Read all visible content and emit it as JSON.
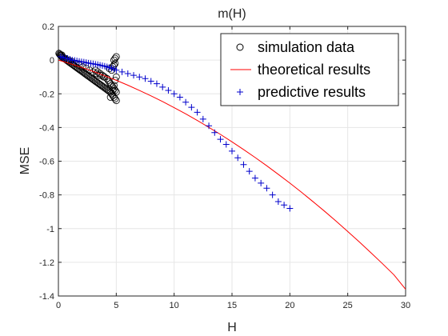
{
  "chart_data": {
    "type": "scatter",
    "title": "m(H)",
    "xlabel": "H",
    "ylabel": "MSE",
    "xlim": [
      0,
      30
    ],
    "ylim": [
      -1.4,
      0.2
    ],
    "xticks": [
      0,
      5,
      10,
      15,
      20,
      25,
      30
    ],
    "yticks": [
      -1.4,
      -1.2,
      -1,
      -0.8,
      -0.6,
      -0.4,
      -0.2,
      0,
      0.2
    ],
    "xtick_labels": [
      "0",
      "5",
      "10",
      "15",
      "20",
      "25",
      "30"
    ],
    "ytick_labels": [
      "-1.4",
      "-1.2",
      "-1",
      "-0.8",
      "-0.6",
      "-0.4",
      "-0.2",
      "0",
      "0.2"
    ],
    "grid": true,
    "legend_position": "top-right",
    "series": [
      {
        "name": "simulation data",
        "kind": "scatter",
        "marker": "circle",
        "color": "#000000",
        "x": [
          0.05,
          0.1,
          0.15,
          0.2,
          0.25,
          0.3,
          0.35,
          0.4,
          0.5,
          0.6,
          0.7,
          0.8,
          0.9,
          1.0,
          1.1,
          1.2,
          1.3,
          1.4,
          1.5,
          1.6,
          1.7,
          1.8,
          1.9,
          2.0,
          2.1,
          2.2,
          2.3,
          2.4,
          2.5,
          2.6,
          2.7,
          2.8,
          2.9,
          3.0,
          3.1,
          3.2,
          3.3,
          3.4,
          3.5,
          3.6,
          3.7,
          3.8,
          3.9,
          4.0,
          4.1,
          4.2,
          4.3,
          4.4,
          4.5,
          4.6,
          4.7,
          4.8,
          4.9,
          5.0,
          3.2,
          3.4,
          3.6,
          3.8,
          4.0,
          4.2,
          4.3,
          4.4,
          4.5,
          4.6,
          4.7,
          4.8,
          4.9,
          5.0,
          4.4,
          4.6,
          4.7,
          4.8,
          4.9,
          4.5,
          4.6,
          4.7,
          4.8,
          4.9,
          5.0,
          4.8,
          4.9,
          5.0,
          0.3,
          0.6,
          0.9,
          1.2,
          1.5,
          1.8,
          2.1,
          2.4,
          2.7,
          3.0,
          3.3,
          3.6,
          3.9,
          4.2
        ],
        "y": [
          0.04,
          0.035,
          0.03,
          0.03,
          0.025,
          0.02,
          0.02,
          0.015,
          0.01,
          0.005,
          0.0,
          -0.005,
          -0.01,
          -0.015,
          -0.02,
          -0.025,
          -0.03,
          -0.035,
          -0.04,
          -0.045,
          -0.05,
          -0.055,
          -0.06,
          -0.065,
          -0.07,
          -0.075,
          -0.08,
          -0.085,
          -0.09,
          -0.095,
          -0.1,
          -0.105,
          -0.11,
          -0.115,
          -0.12,
          -0.125,
          -0.13,
          -0.135,
          -0.14,
          -0.145,
          -0.15,
          -0.155,
          -0.16,
          -0.165,
          -0.17,
          -0.175,
          -0.18,
          -0.185,
          -0.19,
          -0.2,
          -0.21,
          -0.22,
          -0.23,
          -0.24,
          -0.06,
          -0.07,
          -0.08,
          -0.09,
          -0.1,
          -0.11,
          -0.12,
          -0.13,
          -0.14,
          -0.15,
          -0.16,
          -0.17,
          -0.18,
          -0.19,
          -0.05,
          -0.06,
          -0.04,
          -0.03,
          -0.02,
          -0.22,
          -0.2,
          -0.18,
          -0.15,
          -0.12,
          -0.1,
          0.0,
          0.01,
          0.02,
          0.03,
          0.01,
          0.0,
          -0.01,
          -0.02,
          -0.03,
          -0.04,
          -0.05,
          -0.06,
          -0.07,
          -0.08,
          -0.09,
          -0.1,
          -0.11
        ]
      },
      {
        "name": "theoretical results",
        "kind": "line",
        "color": "#ff0000",
        "x": [
          0,
          1,
          2,
          3,
          4,
          5,
          6,
          7,
          8,
          9,
          10,
          11,
          12,
          13,
          14,
          15,
          16,
          17,
          18,
          19,
          20,
          21,
          22,
          23,
          24,
          25,
          26,
          27,
          28,
          29,
          30
        ],
        "y": [
          0.0,
          -0.021,
          -0.043,
          -0.067,
          -0.093,
          -0.12,
          -0.149,
          -0.18,
          -0.212,
          -0.246,
          -0.282,
          -0.319,
          -0.358,
          -0.399,
          -0.441,
          -0.485,
          -0.531,
          -0.578,
          -0.627,
          -0.678,
          -0.73,
          -0.784,
          -0.84,
          -0.897,
          -0.956,
          -1.017,
          -1.079,
          -1.143,
          -1.208,
          -1.275,
          -1.36
        ]
      },
      {
        "name": "predictive results",
        "kind": "scatter",
        "marker": "plus",
        "color": "#0000cc",
        "x": [
          0.2,
          0.4,
          0.6,
          0.8,
          1.0,
          1.2,
          1.4,
          1.6,
          1.8,
          2.0,
          2.2,
          2.4,
          2.6,
          2.8,
          3.0,
          3.2,
          3.4,
          3.6,
          3.8,
          4.0,
          4.2,
          4.4,
          4.6,
          4.8,
          5.0,
          5.5,
          6.0,
          6.5,
          7.0,
          7.5,
          8.0,
          8.5,
          9.0,
          9.5,
          10.0,
          10.5,
          11.0,
          11.5,
          12.0,
          12.5,
          13.0,
          13.5,
          14.0,
          14.5,
          15.0,
          15.5,
          16.0,
          16.5,
          17.0,
          17.5,
          18.0,
          18.5,
          19.0,
          19.5,
          20.0
        ],
        "y": [
          0.02,
          0.015,
          0.012,
          0.01,
          0.005,
          0.0,
          -0.002,
          -0.005,
          -0.008,
          -0.01,
          -0.012,
          -0.015,
          -0.018,
          -0.02,
          -0.022,
          -0.025,
          -0.027,
          -0.03,
          -0.033,
          -0.036,
          -0.04,
          -0.044,
          -0.048,
          -0.052,
          -0.06,
          -0.07,
          -0.08,
          -0.09,
          -0.1,
          -0.11,
          -0.125,
          -0.14,
          -0.16,
          -0.18,
          -0.2,
          -0.22,
          -0.25,
          -0.28,
          -0.31,
          -0.35,
          -0.39,
          -0.43,
          -0.47,
          -0.5,
          -0.54,
          -0.58,
          -0.62,
          -0.66,
          -0.7,
          -0.73,
          -0.76,
          -0.8,
          -0.84,
          -0.86,
          -0.88
        ]
      }
    ]
  }
}
